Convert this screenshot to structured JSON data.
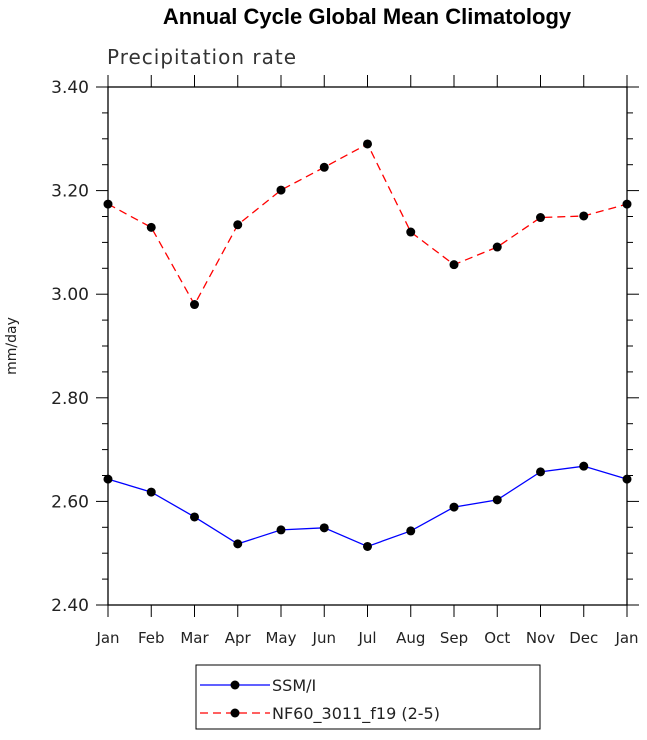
{
  "chart_data": {
    "type": "line",
    "title": "Annual Cycle Global Mean Climatology",
    "subtitle": "Precipitation rate",
    "ylabel": "mm/day",
    "xlabel": "",
    "categories": [
      "Jan",
      "Feb",
      "Mar",
      "Apr",
      "May",
      "Jun",
      "Jul",
      "Aug",
      "Sep",
      "Oct",
      "Nov",
      "Dec",
      "Jan"
    ],
    "ylim": [
      2.4,
      3.4
    ],
    "yticks": [
      "2.40",
      "2.60",
      "2.80",
      "3.00",
      "3.20",
      "3.40"
    ],
    "legend_position": "bottom-center",
    "series": [
      {
        "name": "SSM/I",
        "color": "#0000ff",
        "dashed": false,
        "values": [
          2.643,
          2.618,
          2.57,
          2.518,
          2.545,
          2.549,
          2.513,
          2.543,
          2.589,
          2.603,
          2.657,
          2.668,
          2.643
        ]
      },
      {
        "name": "NF60_3011_f19 (2-5)",
        "color": "#ff0000",
        "dashed": true,
        "values": [
          3.174,
          3.129,
          2.98,
          3.134,
          3.201,
          3.245,
          3.29,
          3.12,
          3.057,
          3.091,
          3.148,
          3.151,
          3.174
        ]
      }
    ]
  }
}
